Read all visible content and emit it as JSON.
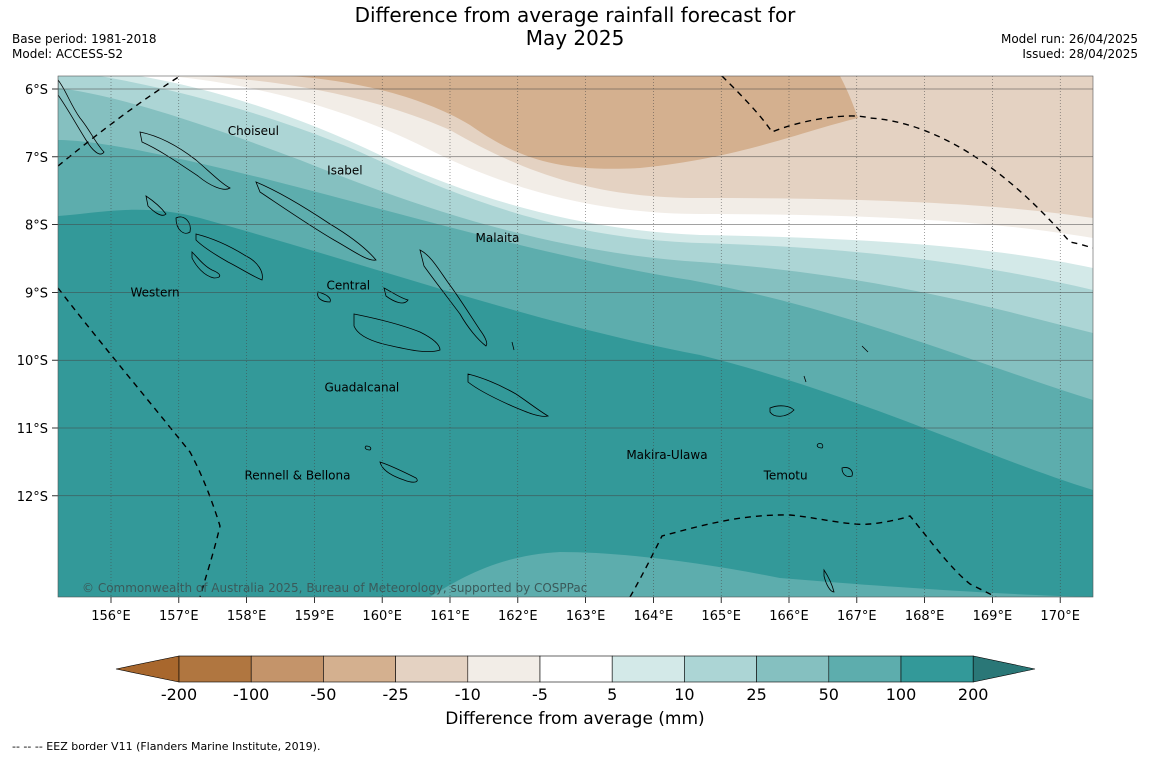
{
  "title": {
    "line1": "Difference from average rainfall forecast for",
    "line2": "May 2025"
  },
  "meta": {
    "base_period": "Base period: 1981-2018",
    "model": "Model: ACCESS-S2",
    "model_run": "Model run: 26/04/2025",
    "issued": "Issued: 28/04/2025"
  },
  "map": {
    "lat_labels": [
      "6°S",
      "7°S",
      "8°S",
      "9°S",
      "10°S",
      "11°S",
      "12°S"
    ],
    "lon_labels": [
      "156°E",
      "157°E",
      "158°E",
      "159°E",
      "160°E",
      "161°E",
      "162°E",
      "163°E",
      "164°E",
      "165°E",
      "166°E",
      "167°E",
      "168°E",
      "169°E",
      "170°E"
    ],
    "provinces": [
      {
        "name": "Choiseul",
        "lon": 158.1,
        "lat": -6.62
      },
      {
        "name": "Isabel",
        "lon": 159.45,
        "lat": -7.2
      },
      {
        "name": "Malaita",
        "lon": 161.7,
        "lat": -8.2
      },
      {
        "name": "Western",
        "lon": 156.65,
        "lat": -9.0
      },
      {
        "name": "Central",
        "lon": 159.5,
        "lat": -8.9
      },
      {
        "name": "Guadalcanal",
        "lon": 159.7,
        "lat": -10.4
      },
      {
        "name": "Makira-Ulawa",
        "lon": 164.2,
        "lat": -11.4
      },
      {
        "name": "Rennell & Bellona",
        "lon": 158.75,
        "lat": -11.7
      },
      {
        "name": "Temotu",
        "lon": 165.95,
        "lat": -11.7
      }
    ],
    "copyright": "© Commonwealth of Australia 2025, Bureau of Meteorology, supported by COSPPac"
  },
  "colorbar": {
    "ticks": [
      "-200",
      "-100",
      "-50",
      "-25",
      "-10",
      "-5",
      "5",
      "10",
      "25",
      "50",
      "100",
      "200"
    ],
    "colors": [
      "#a8672d",
      "#b07640",
      "#c4946a",
      "#d4b08f",
      "#e4d2c2",
      "#f2ede7",
      "#ffffff",
      "#d3e9e8",
      "#acd5d5",
      "#85c0c0",
      "#5dadad",
      "#339999",
      "#2a7777"
    ],
    "label": "Difference from average (mm)"
  },
  "eez_note": "--  --  -- EEZ border V11 (Flanders Marine Institute, 2019)."
}
